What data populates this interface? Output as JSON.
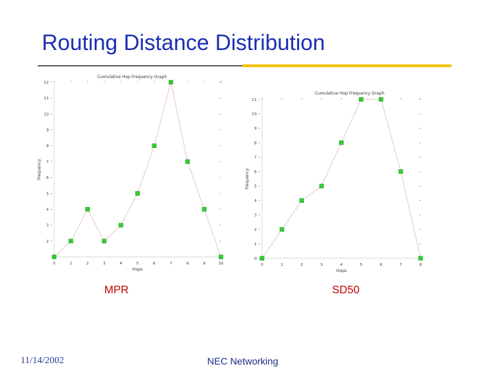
{
  "slide": {
    "title": "Routing Distance Distribution",
    "footer_date": "11/14/2002",
    "footer_center": "NEC Networking"
  },
  "colors": {
    "title": "#1b2fb0",
    "accent_rule": "#f2c200",
    "caption": "#c00000",
    "marker": "#33cc33",
    "line": "#d08080"
  },
  "chart_data": [
    {
      "type": "line",
      "title": "Cumulative Hop Frequency Graph",
      "xlabel": "Hops",
      "ylabel": "Frequency",
      "caption": "MPR",
      "x": [
        0,
        1,
        2,
        3,
        4,
        5,
        6,
        7,
        8,
        9,
        10
      ],
      "values": [
        1,
        2,
        4,
        2,
        3,
        5,
        8,
        12,
        7,
        4,
        1
      ],
      "xlim": [
        0,
        10
      ],
      "ylim": [
        1,
        12
      ],
      "xticks": [
        0,
        1,
        2,
        3,
        4,
        5,
        6,
        7,
        8,
        9,
        10
      ],
      "yticks": [
        2,
        3,
        4,
        5,
        6,
        7,
        8,
        9,
        10,
        11,
        12
      ],
      "ytick_labels": [
        "2",
        "3",
        "4",
        "5",
        "6",
        "7",
        "8",
        "9",
        "10",
        "11",
        "12"
      ],
      "grid": false,
      "legend": "none"
    },
    {
      "type": "line",
      "title": "Cumulative Hop Frequency Graph",
      "xlabel": "Hops",
      "ylabel": "Frequency",
      "caption": "SD50",
      "x": [
        0,
        1,
        2,
        3,
        4,
        5,
        6,
        7,
        8
      ],
      "values": [
        0,
        2,
        4,
        5,
        8,
        11,
        11,
        6,
        0
      ],
      "xlim": [
        0,
        8
      ],
      "ylim": [
        0,
        11
      ],
      "xticks": [
        0,
        1,
        2,
        3,
        4,
        5,
        6,
        7,
        8
      ],
      "yticks": [
        0,
        1,
        2,
        3,
        4,
        5,
        6,
        7,
        8,
        9,
        10,
        11
      ],
      "ytick_labels": [
        "0",
        "1",
        "2",
        "3",
        "4",
        "5",
        "6",
        "7",
        "8",
        "9",
        "10",
        "11"
      ],
      "grid": false,
      "legend": "none"
    }
  ]
}
